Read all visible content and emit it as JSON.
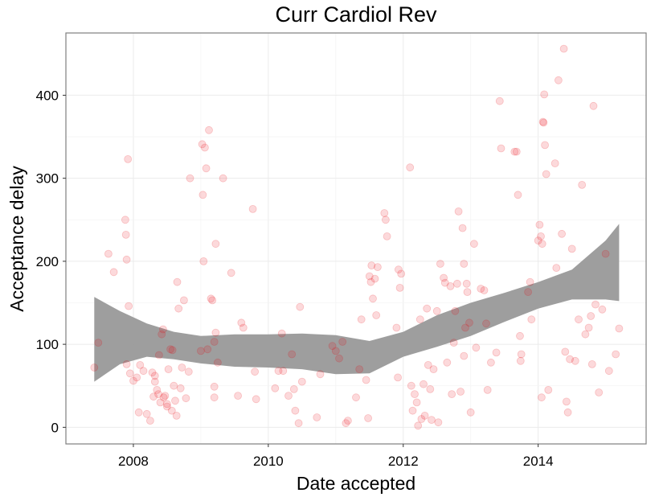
{
  "chart_data": {
    "type": "scatter",
    "title": "Curr Cardiol Rev",
    "xlabel": "Date accepted",
    "ylabel": "Acceptance delay",
    "xlim": [
      2007.0,
      2015.6
    ],
    "ylim": [
      -20,
      475
    ],
    "x_ticks": [
      2008,
      2010,
      2012,
      2014
    ],
    "x_tick_labels": [
      "2008",
      "2010",
      "2012",
      "2014"
    ],
    "y_ticks": [
      0,
      100,
      200,
      300,
      400
    ],
    "y_tick_labels": [
      "0",
      "100",
      "200",
      "300",
      "400"
    ],
    "grid": true,
    "legend": "none",
    "point_color": "#e8000b",
    "band_color": "#999999",
    "points": [
      {
        "x": 2007.42,
        "y": 72
      },
      {
        "x": 2007.48,
        "y": 102
      },
      {
        "x": 2007.63,
        "y": 209
      },
      {
        "x": 2007.71,
        "y": 187
      },
      {
        "x": 2007.88,
        "y": 250
      },
      {
        "x": 2007.89,
        "y": 232
      },
      {
        "x": 2007.9,
        "y": 202
      },
      {
        "x": 2007.92,
        "y": 323
      },
      {
        "x": 2007.93,
        "y": 146
      },
      {
        "x": 2007.9,
        "y": 76
      },
      {
        "x": 2007.95,
        "y": 65
      },
      {
        "x": 2008.0,
        "y": 56
      },
      {
        "x": 2008.05,
        "y": 60
      },
      {
        "x": 2008.08,
        "y": 18
      },
      {
        "x": 2008.1,
        "y": 75
      },
      {
        "x": 2008.15,
        "y": 68
      },
      {
        "x": 2008.2,
        "y": 16
      },
      {
        "x": 2008.25,
        "y": 8
      },
      {
        "x": 2008.28,
        "y": 66
      },
      {
        "x": 2008.3,
        "y": 37
      },
      {
        "x": 2008.32,
        "y": 55
      },
      {
        "x": 2008.35,
        "y": 45
      },
      {
        "x": 2008.37,
        "y": 40
      },
      {
        "x": 2008.38,
        "y": 87
      },
      {
        "x": 2008.4,
        "y": 30
      },
      {
        "x": 2008.42,
        "y": 112
      },
      {
        "x": 2008.44,
        "y": 118
      },
      {
        "x": 2008.45,
        "y": 36
      },
      {
        "x": 2008.47,
        "y": 38
      },
      {
        "x": 2008.5,
        "y": 25
      },
      {
        "x": 2008.52,
        "y": 70
      },
      {
        "x": 2008.55,
        "y": 94
      },
      {
        "x": 2008.57,
        "y": 20
      },
      {
        "x": 2008.6,
        "y": 50
      },
      {
        "x": 2008.62,
        "y": 32
      },
      {
        "x": 2008.64,
        "y": 14
      },
      {
        "x": 2008.65,
        "y": 175
      },
      {
        "x": 2008.67,
        "y": 143
      },
      {
        "x": 2008.7,
        "y": 47
      },
      {
        "x": 2008.72,
        "y": 72
      },
      {
        "x": 2008.75,
        "y": 153
      },
      {
        "x": 2008.78,
        "y": 35
      },
      {
        "x": 2008.82,
        "y": 67
      },
      {
        "x": 2008.84,
        "y": 300
      },
      {
        "x": 2008.32,
        "y": 62
      },
      {
        "x": 2008.5,
        "y": 28
      },
      {
        "x": 2008.58,
        "y": 93
      },
      {
        "x": 2009.0,
        "y": 92
      },
      {
        "x": 2009.02,
        "y": 341
      },
      {
        "x": 2009.03,
        "y": 280
      },
      {
        "x": 2009.04,
        "y": 200
      },
      {
        "x": 2009.06,
        "y": 337
      },
      {
        "x": 2009.08,
        "y": 312
      },
      {
        "x": 2009.1,
        "y": 94
      },
      {
        "x": 2009.12,
        "y": 358
      },
      {
        "x": 2009.15,
        "y": 155
      },
      {
        "x": 2009.17,
        "y": 153
      },
      {
        "x": 2009.2,
        "y": 103
      },
      {
        "x": 2009.22,
        "y": 114
      },
      {
        "x": 2009.22,
        "y": 221
      },
      {
        "x": 2009.2,
        "y": 36
      },
      {
        "x": 2009.2,
        "y": 49
      },
      {
        "x": 2009.25,
        "y": 78
      },
      {
        "x": 2009.33,
        "y": 300
      },
      {
        "x": 2009.45,
        "y": 186
      },
      {
        "x": 2009.55,
        "y": 38
      },
      {
        "x": 2009.6,
        "y": 126
      },
      {
        "x": 2009.63,
        "y": 120
      },
      {
        "x": 2009.77,
        "y": 263
      },
      {
        "x": 2009.8,
        "y": 67
      },
      {
        "x": 2009.82,
        "y": 34
      },
      {
        "x": 2010.1,
        "y": 47
      },
      {
        "x": 2010.15,
        "y": 68
      },
      {
        "x": 2010.2,
        "y": 113
      },
      {
        "x": 2010.22,
        "y": 68
      },
      {
        "x": 2010.3,
        "y": 38
      },
      {
        "x": 2010.35,
        "y": 88
      },
      {
        "x": 2010.38,
        "y": 46
      },
      {
        "x": 2010.4,
        "y": 20
      },
      {
        "x": 2010.45,
        "y": 5
      },
      {
        "x": 2010.47,
        "y": 145
      },
      {
        "x": 2010.5,
        "y": 55
      },
      {
        "x": 2010.72,
        "y": 12
      },
      {
        "x": 2010.77,
        "y": 64
      },
      {
        "x": 2010.95,
        "y": 98
      },
      {
        "x": 2011.0,
        "y": 92
      },
      {
        "x": 2011.05,
        "y": 83
      },
      {
        "x": 2011.1,
        "y": 103
      },
      {
        "x": 2011.15,
        "y": 5
      },
      {
        "x": 2011.18,
        "y": 8
      },
      {
        "x": 2011.3,
        "y": 36
      },
      {
        "x": 2011.35,
        "y": 70
      },
      {
        "x": 2011.38,
        "y": 130
      },
      {
        "x": 2011.45,
        "y": 57
      },
      {
        "x": 2011.48,
        "y": 11
      },
      {
        "x": 2011.5,
        "y": 182
      },
      {
        "x": 2011.52,
        "y": 175
      },
      {
        "x": 2011.53,
        "y": 195
      },
      {
        "x": 2011.55,
        "y": 155
      },
      {
        "x": 2011.58,
        "y": 179
      },
      {
        "x": 2011.6,
        "y": 135
      },
      {
        "x": 2011.62,
        "y": 193
      },
      {
        "x": 2011.72,
        "y": 258
      },
      {
        "x": 2011.74,
        "y": 250
      },
      {
        "x": 2011.76,
        "y": 230
      },
      {
        "x": 2011.9,
        "y": 120
      },
      {
        "x": 2011.92,
        "y": 60
      },
      {
        "x": 2011.93,
        "y": 190
      },
      {
        "x": 2011.95,
        "y": 168
      },
      {
        "x": 2011.97,
        "y": 185
      },
      {
        "x": 2012.1,
        "y": 313
      },
      {
        "x": 2012.12,
        "y": 50
      },
      {
        "x": 2012.14,
        "y": 20
      },
      {
        "x": 2012.17,
        "y": 40
      },
      {
        "x": 2012.2,
        "y": 30
      },
      {
        "x": 2012.22,
        "y": 2
      },
      {
        "x": 2012.25,
        "y": 130
      },
      {
        "x": 2012.27,
        "y": 10
      },
      {
        "x": 2012.3,
        "y": 52
      },
      {
        "x": 2012.32,
        "y": 14
      },
      {
        "x": 2012.35,
        "y": 143
      },
      {
        "x": 2012.37,
        "y": 75
      },
      {
        "x": 2012.4,
        "y": 46
      },
      {
        "x": 2012.42,
        "y": 9
      },
      {
        "x": 2012.45,
        "y": 70
      },
      {
        "x": 2012.5,
        "y": 140
      },
      {
        "x": 2012.52,
        "y": 6
      },
      {
        "x": 2012.55,
        "y": 197
      },
      {
        "x": 2012.6,
        "y": 180
      },
      {
        "x": 2012.62,
        "y": 174
      },
      {
        "x": 2012.65,
        "y": 78
      },
      {
        "x": 2012.7,
        "y": 170
      },
      {
        "x": 2012.72,
        "y": 40
      },
      {
        "x": 2012.75,
        "y": 102
      },
      {
        "x": 2012.77,
        "y": 140
      },
      {
        "x": 2012.8,
        "y": 173
      },
      {
        "x": 2012.82,
        "y": 260
      },
      {
        "x": 2012.85,
        "y": 43
      },
      {
        "x": 2012.88,
        "y": 240
      },
      {
        "x": 2012.9,
        "y": 197
      },
      {
        "x": 2012.92,
        "y": 120
      },
      {
        "x": 2012.94,
        "y": 173
      },
      {
        "x": 2012.95,
        "y": 163
      },
      {
        "x": 2012.98,
        "y": 126
      },
      {
        "x": 2013.0,
        "y": 18
      },
      {
        "x": 2013.05,
        "y": 221
      },
      {
        "x": 2013.08,
        "y": 96
      },
      {
        "x": 2013.15,
        "y": 167
      },
      {
        "x": 2013.2,
        "y": 165
      },
      {
        "x": 2013.23,
        "y": 125
      },
      {
        "x": 2013.25,
        "y": 45
      },
      {
        "x": 2013.3,
        "y": 78
      },
      {
        "x": 2013.38,
        "y": 90
      },
      {
        "x": 2013.43,
        "y": 393
      },
      {
        "x": 2013.45,
        "y": 336
      },
      {
        "x": 2013.65,
        "y": 332
      },
      {
        "x": 2013.68,
        "y": 332
      },
      {
        "x": 2013.7,
        "y": 280
      },
      {
        "x": 2013.73,
        "y": 110
      },
      {
        "x": 2013.74,
        "y": 80
      },
      {
        "x": 2013.75,
        "y": 88
      },
      {
        "x": 2013.85,
        "y": 163
      },
      {
        "x": 2013.88,
        "y": 175
      },
      {
        "x": 2013.9,
        "y": 130
      },
      {
        "x": 2014.0,
        "y": 225
      },
      {
        "x": 2014.02,
        "y": 244
      },
      {
        "x": 2014.04,
        "y": 230
      },
      {
        "x": 2014.06,
        "y": 221
      },
      {
        "x": 2014.07,
        "y": 368
      },
      {
        "x": 2014.08,
        "y": 367
      },
      {
        "x": 2014.09,
        "y": 401
      },
      {
        "x": 2014.1,
        "y": 340
      },
      {
        "x": 2014.12,
        "y": 305
      },
      {
        "x": 2014.15,
        "y": 45
      },
      {
        "x": 2014.05,
        "y": 36
      },
      {
        "x": 2014.25,
        "y": 318
      },
      {
        "x": 2014.3,
        "y": 418
      },
      {
        "x": 2014.35,
        "y": 233
      },
      {
        "x": 2014.38,
        "y": 456
      },
      {
        "x": 2014.4,
        "y": 91
      },
      {
        "x": 2014.42,
        "y": 31
      },
      {
        "x": 2014.44,
        "y": 18
      },
      {
        "x": 2014.47,
        "y": 82
      },
      {
        "x": 2014.5,
        "y": 215
      },
      {
        "x": 2014.55,
        "y": 80
      },
      {
        "x": 2014.6,
        "y": 130
      },
      {
        "x": 2014.65,
        "y": 292
      },
      {
        "x": 2014.7,
        "y": 112
      },
      {
        "x": 2014.75,
        "y": 120
      },
      {
        "x": 2014.78,
        "y": 134
      },
      {
        "x": 2014.8,
        "y": 76
      },
      {
        "x": 2014.82,
        "y": 387
      },
      {
        "x": 2014.85,
        "y": 148
      },
      {
        "x": 2014.9,
        "y": 42
      },
      {
        "x": 2014.95,
        "y": 142
      },
      {
        "x": 2015.0,
        "y": 209
      },
      {
        "x": 2015.05,
        "y": 68
      },
      {
        "x": 2015.15,
        "y": 88
      },
      {
        "x": 2015.2,
        "y": 119
      },
      {
        "x": 2014.27,
        "y": 192
      },
      {
        "x": 2012.9,
        "y": 86
      }
    ],
    "smooth_band": {
      "x": [
        2007.42,
        2007.8,
        2008.2,
        2008.6,
        2009.0,
        2009.5,
        2010.0,
        2010.5,
        2011.0,
        2011.5,
        2012.0,
        2012.5,
        2013.0,
        2013.5,
        2014.0,
        2014.5,
        2015.0,
        2015.2
      ],
      "upper": [
        157,
        140,
        125,
        115,
        110,
        112,
        112,
        113,
        111,
        104,
        115,
        135,
        150,
        162,
        175,
        190,
        225,
        245
      ],
      "lower": [
        55,
        76,
        85,
        82,
        77,
        73,
        72,
        70,
        64,
        65,
        85,
        97,
        110,
        127,
        143,
        154,
        154,
        152
      ]
    }
  }
}
